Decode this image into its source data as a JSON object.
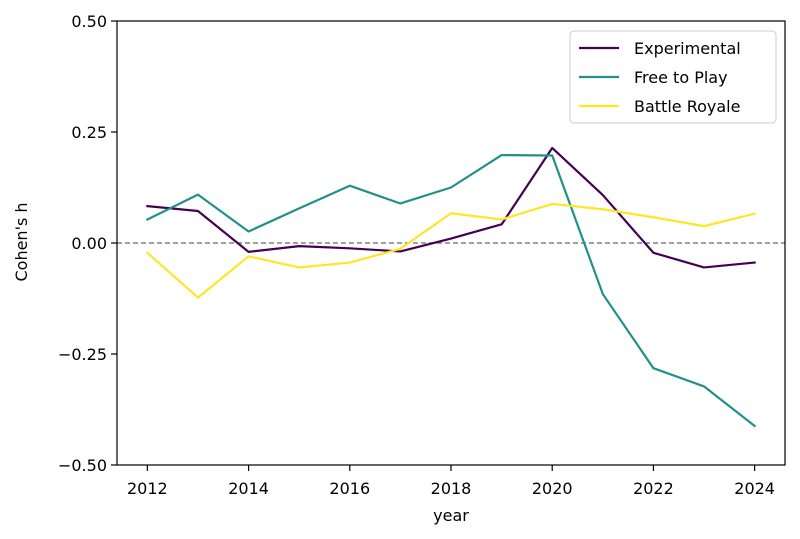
{
  "chart_data": {
    "type": "line",
    "xlabel": "year",
    "ylabel": "Cohen's h",
    "xlim": [
      2011.4,
      2024.6
    ],
    "ylim": [
      -0.5,
      0.5
    ],
    "xticks": [
      2012,
      2014,
      2016,
      2018,
      2020,
      2022,
      2024
    ],
    "yticks": [
      -0.5,
      -0.25,
      0.0,
      0.25,
      0.5
    ],
    "ytick_labels": [
      "−0.50",
      "−0.25",
      "0.00",
      "0.25",
      "0.50"
    ],
    "reference_line": {
      "y": 0.0,
      "style": "dashed",
      "color": "#808080"
    },
    "grid": false,
    "legend_position": "top-right",
    "x": [
      2012,
      2013,
      2014,
      2015,
      2016,
      2017,
      2018,
      2019,
      2020,
      2021,
      2022,
      2023,
      2024
    ],
    "series": [
      {
        "name": "Experimental",
        "color": "#440154",
        "values": [
          0.083,
          0.072,
          -0.02,
          -0.007,
          -0.012,
          -0.019,
          0.01,
          0.042,
          0.214,
          0.108,
          -0.022,
          -0.055,
          -0.044
        ]
      },
      {
        "name": "Free to Play",
        "color": "#21908d",
        "values": [
          0.053,
          0.109,
          0.026,
          0.078,
          0.129,
          0.089,
          0.125,
          0.198,
          0.197,
          -0.115,
          -0.282,
          -0.323,
          -0.412
        ]
      },
      {
        "name": "Battle Royale",
        "color": "#fde725",
        "values": [
          -0.022,
          -0.123,
          -0.03,
          -0.055,
          -0.044,
          -0.013,
          0.067,
          0.053,
          0.088,
          0.076,
          0.058,
          0.038,
          0.066
        ]
      }
    ]
  }
}
